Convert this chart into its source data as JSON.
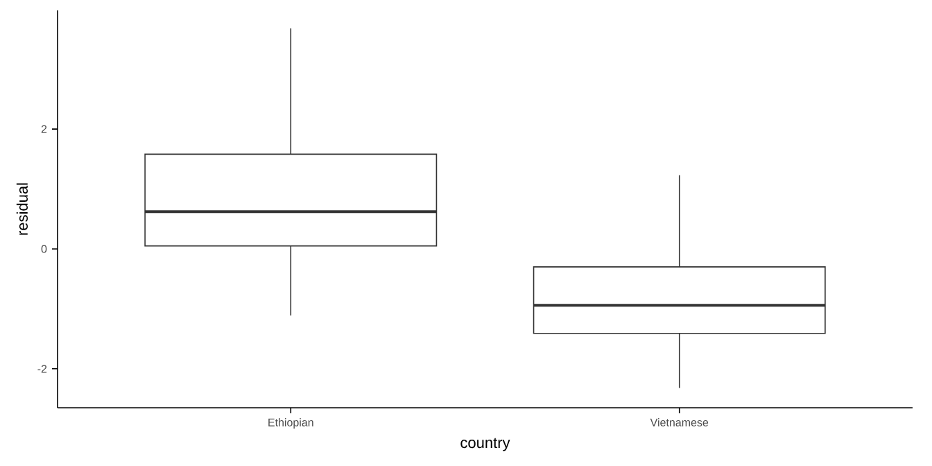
{
  "chart_data": {
    "type": "box",
    "xlabel": "country",
    "ylabel": "residual",
    "categories": [
      "Ethiopian",
      "Vietnamese"
    ],
    "boxes": [
      {
        "low": -1.11,
        "q1": 0.05,
        "median": 0.62,
        "q3": 1.58,
        "high": 3.68
      },
      {
        "low": -2.32,
        "q1": -1.41,
        "median": -0.94,
        "q3": -0.3,
        "high": 1.23
      }
    ],
    "color": "#333333",
    "ylim": [
      -2.65,
      3.98
    ],
    "yticks": [
      -2,
      0,
      2
    ]
  }
}
